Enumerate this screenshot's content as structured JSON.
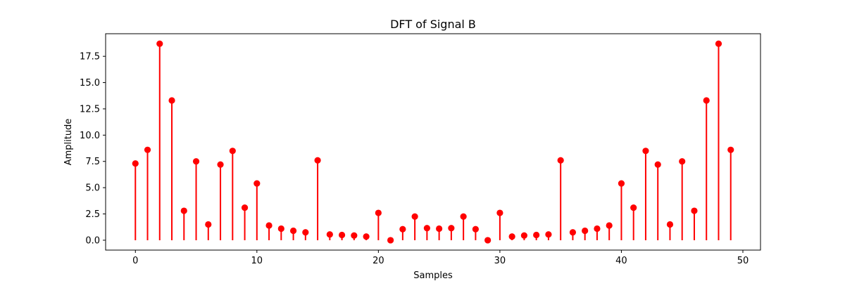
{
  "chart_data": {
    "type": "stem",
    "title": "DFT of Signal B",
    "xlabel": "Samples",
    "ylabel": "Amplitude",
    "xlim": [
      -2.45,
      51.45
    ],
    "ylim": [
      -0.94,
      19.65
    ],
    "xticks": [
      0,
      10,
      20,
      30,
      40,
      50
    ],
    "xtick_labels": [
      "0",
      "10",
      "20",
      "30",
      "40",
      "50"
    ],
    "yticks": [
      0,
      2.5,
      5,
      7.5,
      10,
      12.5,
      15,
      17.5
    ],
    "ytick_labels": [
      "0.0",
      "2.5",
      "5.0",
      "7.5",
      "10.0",
      "12.5",
      "15.0",
      "17.5"
    ],
    "grid": false,
    "color": "#ff0000",
    "x": [
      0,
      1,
      2,
      3,
      4,
      5,
      6,
      7,
      8,
      9,
      10,
      11,
      12,
      13,
      14,
      15,
      16,
      17,
      18,
      19,
      20,
      21,
      22,
      23,
      24,
      25,
      26,
      27,
      28,
      29,
      30,
      31,
      32,
      33,
      34,
      35,
      36,
      37,
      38,
      39,
      40,
      41,
      42,
      43,
      44,
      45,
      46,
      47,
      48,
      49
    ],
    "values": [
      7.3,
      8.6,
      18.7,
      13.3,
      2.8,
      7.5,
      1.5,
      7.2,
      8.5,
      3.1,
      5.4,
      1.4,
      1.1,
      0.9,
      0.75,
      7.6,
      0.55,
      0.5,
      0.45,
      0.35,
      2.6,
      0.0,
      1.05,
      2.25,
      1.15,
      1.1,
      1.15,
      2.25,
      1.05,
      0.0,
      2.6,
      0.35,
      0.45,
      0.5,
      0.55,
      7.6,
      0.75,
      0.9,
      1.1,
      1.4,
      5.4,
      3.1,
      8.5,
      7.2,
      1.5,
      7.5,
      2.8,
      13.3,
      18.7,
      8.6
    ]
  }
}
